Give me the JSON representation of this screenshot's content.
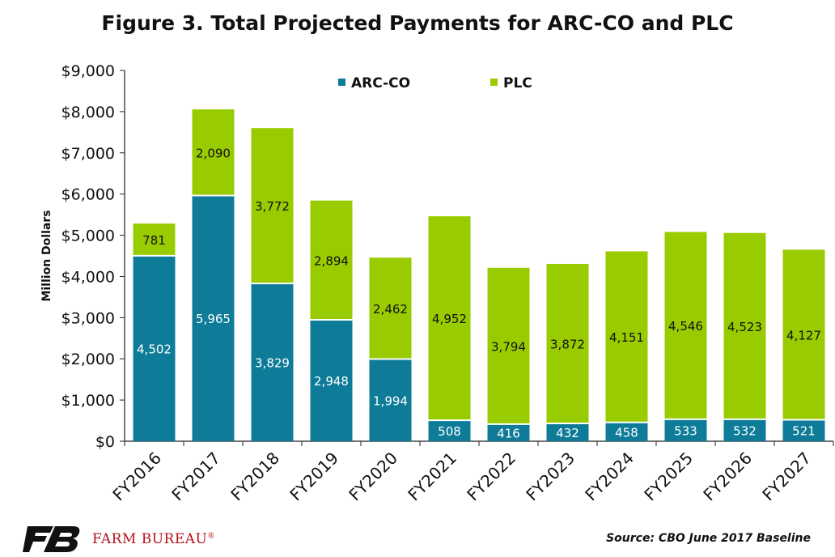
{
  "chart_data": {
    "type": "bar",
    "stacked": true,
    "title": "Figure 3. Total Projected Payments for ARC-CO and PLC",
    "ylabel": "Million Dollars",
    "xlabel": "",
    "ylim": [
      0,
      9000
    ],
    "yticks": [
      0,
      1000,
      2000,
      3000,
      4000,
      5000,
      6000,
      7000,
      8000,
      9000
    ],
    "ytick_labels": [
      "$0",
      "$1,000",
      "$2,000",
      "$3,000",
      "$4,000",
      "$5,000",
      "$6,000",
      "$7,000",
      "$8,000",
      "$9,000"
    ],
    "categories": [
      "FY2016",
      "FY2017",
      "FY2018",
      "FY2019",
      "FY2020",
      "FY2021",
      "FY2022",
      "FY2023",
      "FY2024",
      "FY2025",
      "FY2026",
      "FY2027"
    ],
    "series": [
      {
        "name": "ARC-CO",
        "color": "#0e7c98",
        "values": [
          4502,
          5965,
          3829,
          2948,
          1994,
          508,
          416,
          432,
          458,
          533,
          532,
          521
        ],
        "labels": [
          "4,502",
          "5,965",
          "3,829",
          "2,948",
          "1,994",
          "508",
          "416",
          "432",
          "458",
          "533",
          "532",
          "521"
        ]
      },
      {
        "name": "PLC",
        "color": "#99cc00",
        "values": [
          781,
          2090,
          3772,
          2894,
          2462,
          4952,
          3794,
          3872,
          4151,
          4546,
          4523,
          4127
        ],
        "labels": [
          "781",
          "2,090",
          "3,772",
          "2,894",
          "2,462",
          "4,952",
          "3,794",
          "3,872",
          "4,151",
          "4,546",
          "4,523",
          "4,127"
        ]
      }
    ],
    "legend_position": "top",
    "grid": false
  },
  "source_text": "Source: CBO June 2017 Baseline",
  "logo": {
    "text": "FARM BUREAU",
    "mark": "®",
    "color": "#b5121b"
  }
}
